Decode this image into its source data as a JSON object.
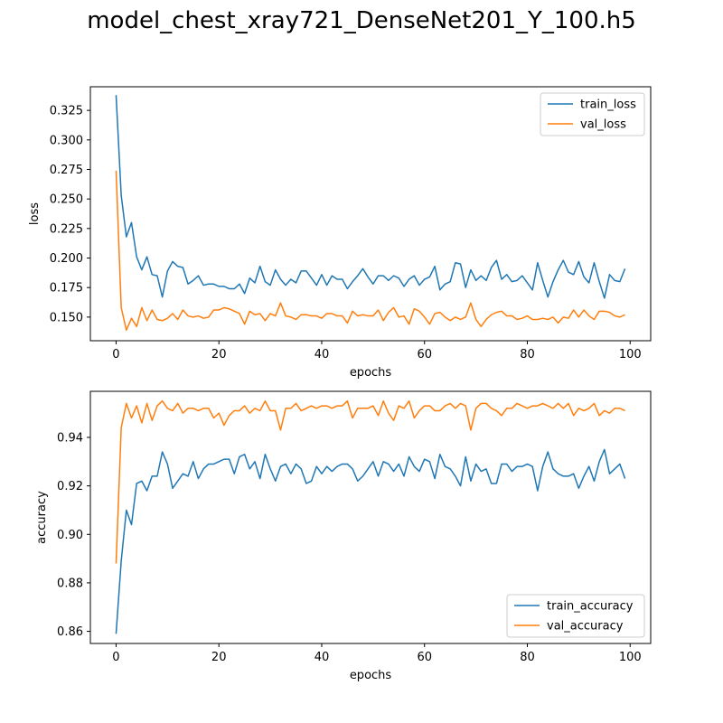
{
  "title": "model_chest_xray721_DenseNet201_Y_100.h5",
  "chart_data": [
    {
      "type": "line",
      "xlabel": "epochs",
      "ylabel": "loss",
      "xlim": [
        -5,
        104
      ],
      "ylim": [
        0.13,
        0.345
      ],
      "xticks": [
        0,
        20,
        40,
        60,
        80,
        100
      ],
      "yticks": [
        0.15,
        0.175,
        0.2,
        0.225,
        0.25,
        0.275,
        0.3,
        0.325
      ],
      "ytick_labels": [
        "0.150",
        "0.175",
        "0.200",
        "0.225",
        "0.250",
        "0.275",
        "0.300",
        "0.325"
      ],
      "legend_position": "top-right",
      "series": [
        {
          "name": "train_loss",
          "color": "#1f77b4",
          "values": [
            0.338,
            0.253,
            0.218,
            0.23,
            0.201,
            0.19,
            0.201,
            0.186,
            0.185,
            0.167,
            0.189,
            0.197,
            0.193,
            0.192,
            0.178,
            0.181,
            0.185,
            0.177,
            0.178,
            0.178,
            0.176,
            0.176,
            0.174,
            0.174,
            0.178,
            0.17,
            0.183,
            0.179,
            0.193,
            0.18,
            0.177,
            0.19,
            0.182,
            0.177,
            0.182,
            0.179,
            0.189,
            0.189,
            0.183,
            0.177,
            0.186,
            0.177,
            0.185,
            0.182,
            0.182,
            0.174,
            0.18,
            0.185,
            0.191,
            0.184,
            0.178,
            0.185,
            0.185,
            0.181,
            0.185,
            0.183,
            0.176,
            0.182,
            0.185,
            0.177,
            0.182,
            0.184,
            0.193,
            0.173,
            0.178,
            0.18,
            0.196,
            0.195,
            0.175,
            0.19,
            0.181,
            0.185,
            0.181,
            0.192,
            0.198,
            0.182,
            0.186,
            0.18,
            0.181,
            0.185,
            0.179,
            0.173,
            0.196,
            0.181,
            0.167,
            0.18,
            0.19,
            0.198,
            0.188,
            0.186,
            0.197,
            0.184,
            0.179,
            0.196,
            0.18,
            0.166,
            0.186,
            0.181,
            0.18,
            0.191
          ]
        },
        {
          "name": "val_loss",
          "color": "#ff7f0e",
          "values": [
            0.274,
            0.158,
            0.139,
            0.149,
            0.142,
            0.158,
            0.147,
            0.156,
            0.148,
            0.147,
            0.149,
            0.153,
            0.148,
            0.156,
            0.151,
            0.15,
            0.151,
            0.149,
            0.15,
            0.156,
            0.156,
            0.158,
            0.157,
            0.155,
            0.153,
            0.144,
            0.155,
            0.152,
            0.153,
            0.147,
            0.153,
            0.151,
            0.162,
            0.151,
            0.15,
            0.148,
            0.152,
            0.152,
            0.151,
            0.151,
            0.149,
            0.153,
            0.153,
            0.151,
            0.151,
            0.145,
            0.155,
            0.151,
            0.152,
            0.151,
            0.151,
            0.156,
            0.147,
            0.154,
            0.158,
            0.15,
            0.151,
            0.144,
            0.157,
            0.155,
            0.15,
            0.144,
            0.153,
            0.154,
            0.15,
            0.147,
            0.15,
            0.148,
            0.15,
            0.162,
            0.148,
            0.142,
            0.148,
            0.152,
            0.154,
            0.155,
            0.151,
            0.151,
            0.148,
            0.149,
            0.151,
            0.148,
            0.148,
            0.149,
            0.148,
            0.15,
            0.145,
            0.15,
            0.149,
            0.156,
            0.15,
            0.156,
            0.151,
            0.148,
            0.155,
            0.155,
            0.154,
            0.151,
            0.15,
            0.152
          ]
        }
      ]
    },
    {
      "type": "line",
      "xlabel": "epochs",
      "ylabel": "accuracy",
      "xlim": [
        -5,
        104
      ],
      "ylim": [
        0.855,
        0.959
      ],
      "xticks": [
        0,
        20,
        40,
        60,
        80,
        100
      ],
      "yticks": [
        0.86,
        0.88,
        0.9,
        0.92,
        0.94
      ],
      "ytick_labels": [
        "0.86",
        "0.88",
        "0.90",
        "0.92",
        "0.94"
      ],
      "legend_position": "bottom-right",
      "series": [
        {
          "name": "train_accuracy",
          "color": "#1f77b4",
          "values": [
            0.859,
            0.889,
            0.91,
            0.904,
            0.921,
            0.922,
            0.918,
            0.924,
            0.924,
            0.934,
            0.929,
            0.919,
            0.922,
            0.925,
            0.924,
            0.93,
            0.923,
            0.927,
            0.929,
            0.929,
            0.93,
            0.931,
            0.931,
            0.925,
            0.932,
            0.933,
            0.927,
            0.93,
            0.923,
            0.933,
            0.927,
            0.922,
            0.928,
            0.929,
            0.925,
            0.929,
            0.927,
            0.921,
            0.922,
            0.928,
            0.925,
            0.928,
            0.926,
            0.928,
            0.929,
            0.929,
            0.927,
            0.922,
            0.924,
            0.927,
            0.93,
            0.924,
            0.93,
            0.929,
            0.926,
            0.929,
            0.924,
            0.932,
            0.928,
            0.926,
            0.931,
            0.93,
            0.923,
            0.933,
            0.928,
            0.927,
            0.924,
            0.92,
            0.932,
            0.922,
            0.929,
            0.926,
            0.927,
            0.921,
            0.921,
            0.929,
            0.929,
            0.926,
            0.928,
            0.928,
            0.929,
            0.928,
            0.918,
            0.928,
            0.934,
            0.927,
            0.925,
            0.924,
            0.924,
            0.925,
            0.919,
            0.924,
            0.928,
            0.922,
            0.93,
            0.935,
            0.925,
            0.927,
            0.929,
            0.923
          ]
        },
        {
          "name": "val_accuracy",
          "color": "#ff7f0e",
          "values": [
            0.888,
            0.944,
            0.954,
            0.948,
            0.953,
            0.946,
            0.954,
            0.947,
            0.953,
            0.955,
            0.952,
            0.951,
            0.954,
            0.95,
            0.952,
            0.952,
            0.951,
            0.952,
            0.952,
            0.948,
            0.95,
            0.945,
            0.949,
            0.951,
            0.951,
            0.953,
            0.95,
            0.952,
            0.951,
            0.955,
            0.951,
            0.951,
            0.943,
            0.952,
            0.952,
            0.954,
            0.951,
            0.952,
            0.953,
            0.952,
            0.953,
            0.953,
            0.952,
            0.953,
            0.953,
            0.955,
            0.948,
            0.952,
            0.952,
            0.952,
            0.953,
            0.949,
            0.955,
            0.95,
            0.947,
            0.953,
            0.952,
            0.955,
            0.948,
            0.951,
            0.953,
            0.953,
            0.951,
            0.951,
            0.953,
            0.954,
            0.952,
            0.954,
            0.953,
            0.943,
            0.952,
            0.954,
            0.954,
            0.952,
            0.951,
            0.949,
            0.952,
            0.952,
            0.954,
            0.953,
            0.952,
            0.953,
            0.953,
            0.954,
            0.953,
            0.952,
            0.954,
            0.952,
            0.954,
            0.949,
            0.952,
            0.951,
            0.952,
            0.954,
            0.949,
            0.951,
            0.95,
            0.952,
            0.952,
            0.951
          ]
        }
      ]
    }
  ]
}
